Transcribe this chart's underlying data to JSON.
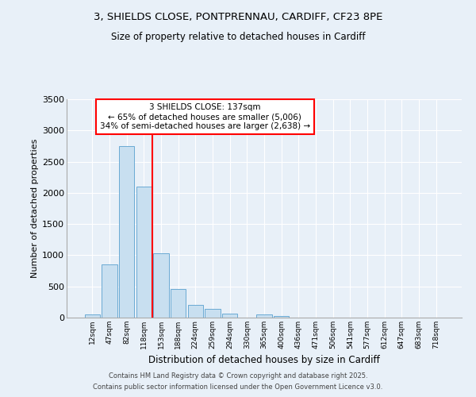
{
  "title_line1": "3, SHIELDS CLOSE, PONTPRENNAU, CARDIFF, CF23 8PE",
  "title_line2": "Size of property relative to detached houses in Cardiff",
  "xlabel": "Distribution of detached houses by size in Cardiff",
  "ylabel": "Number of detached properties",
  "bar_categories": [
    "12sqm",
    "47sqm",
    "82sqm",
    "118sqm",
    "153sqm",
    "188sqm",
    "224sqm",
    "259sqm",
    "294sqm",
    "330sqm",
    "365sqm",
    "400sqm",
    "436sqm",
    "471sqm",
    "506sqm",
    "541sqm",
    "577sqm",
    "612sqm",
    "647sqm",
    "683sqm",
    "718sqm"
  ],
  "bar_values": [
    50,
    850,
    2750,
    2100,
    1030,
    460,
    200,
    140,
    60,
    0,
    50,
    30,
    0,
    0,
    0,
    0,
    0,
    0,
    0,
    0,
    0
  ],
  "bar_color": "#c8dff0",
  "bar_edge_color": "#6aaad4",
  "red_line_index": 3.5,
  "annotation_text": "3 SHIELDS CLOSE: 137sqm\n← 65% of detached houses are smaller (5,006)\n34% of semi-detached houses are larger (2,638) →",
  "ylim": [
    0,
    3500
  ],
  "yticks": [
    0,
    500,
    1000,
    1500,
    2000,
    2500,
    3000,
    3500
  ],
  "background_color": "#e8f0f8",
  "plot_background": "#e8f0f8",
  "grid_color": "#ffffff",
  "footer_line1": "Contains HM Land Registry data © Crown copyright and database right 2025.",
  "footer_line2": "Contains public sector information licensed under the Open Government Licence v3.0."
}
